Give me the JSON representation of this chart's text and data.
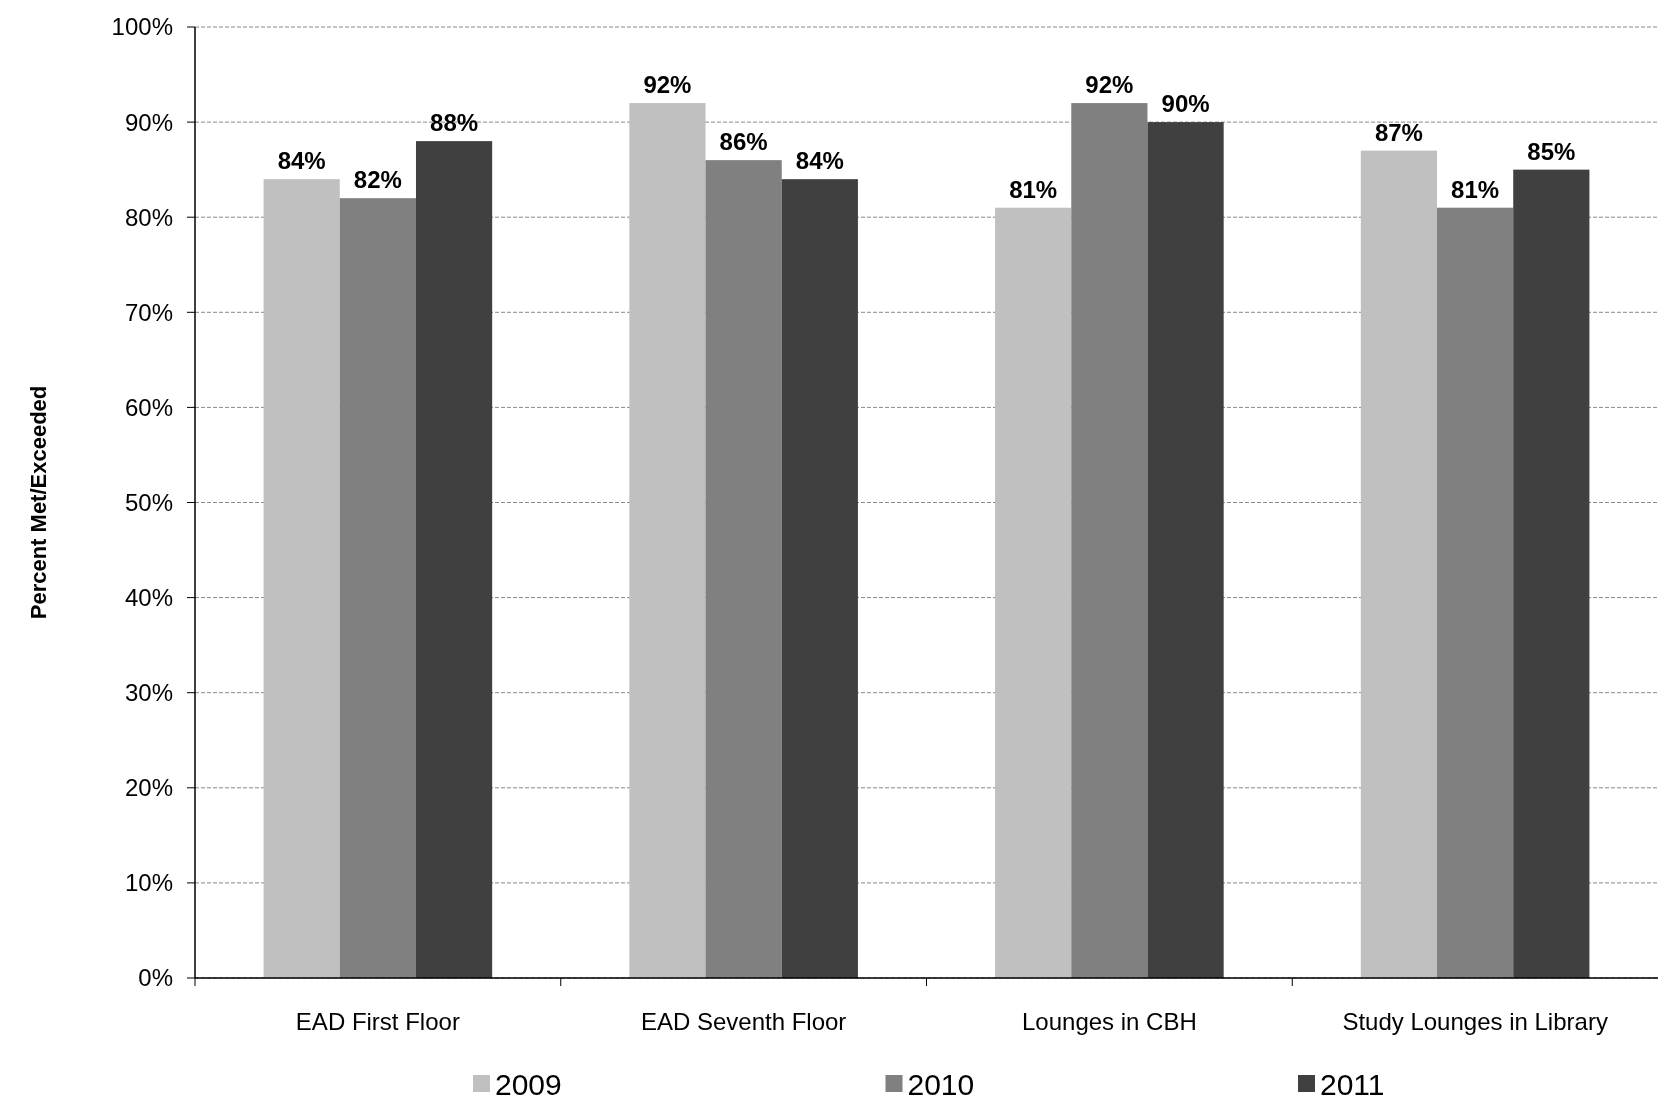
{
  "chart_data": {
    "type": "bar",
    "ylabel": "Percent Met/Exceeded",
    "categories": [
      "EAD First Floor",
      "EAD Seventh Floor",
      "Lounges in CBH",
      "Study Lounges in Library"
    ],
    "series": [
      {
        "name": "2009",
        "color": "#c0c0c0",
        "values": [
          84,
          92,
          81,
          87
        ],
        "value_labels": [
          "84%",
          "92%",
          "81%",
          "87%"
        ]
      },
      {
        "name": "2010",
        "color": "#808080",
        "values": [
          82,
          86,
          92,
          81
        ],
        "value_labels": [
          "82%",
          "86%",
          "92%",
          "81%"
        ]
      },
      {
        "name": "2011",
        "color": "#404040",
        "values": [
          88,
          84,
          90,
          85
        ],
        "value_labels": [
          "88%",
          "84%",
          "90%",
          "85%"
        ]
      }
    ],
    "ylim": [
      0,
      100
    ],
    "yticks": [
      {
        "value": 0,
        "label": "0%"
      },
      {
        "value": 10,
        "label": "10%"
      },
      {
        "value": 20,
        "label": "20%"
      },
      {
        "value": 30,
        "label": "30%"
      },
      {
        "value": 40,
        "label": "40%"
      },
      {
        "value": 50,
        "label": "50%"
      },
      {
        "value": 60,
        "label": "60%"
      },
      {
        "value": 70,
        "label": "70%"
      },
      {
        "value": 80,
        "label": "80%"
      },
      {
        "value": 90,
        "label": "90%"
      },
      {
        "value": 100,
        "label": "100%"
      }
    ],
    "grid": "y",
    "legend": "bottom"
  }
}
